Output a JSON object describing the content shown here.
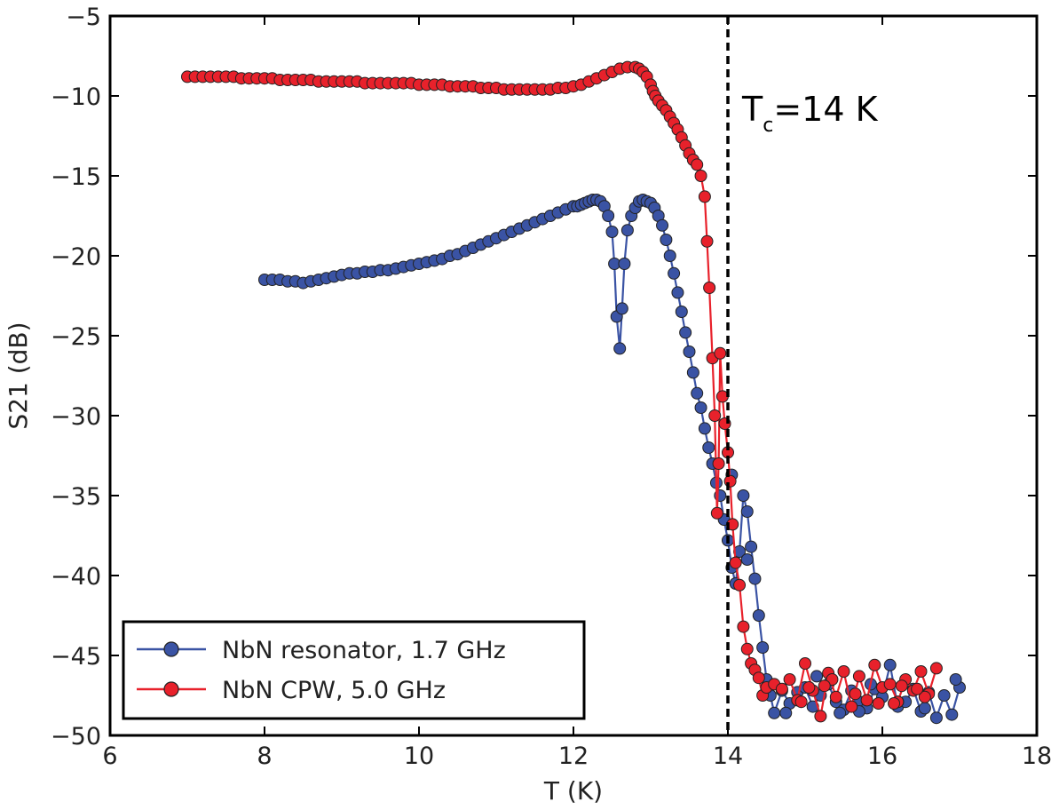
{
  "chart_data": {
    "type": "line",
    "title": "",
    "xlabel": "T (K)",
    "ylabel": "S21 (dB)",
    "xlim": [
      6,
      18
    ],
    "ylim": [
      -50,
      -5
    ],
    "xticks": [
      6,
      8,
      10,
      12,
      14,
      16,
      18
    ],
    "yticks": [
      -50,
      -45,
      -40,
      -35,
      -30,
      -25,
      -20,
      -15,
      -10,
      -5
    ],
    "xtick_labels": [
      "6",
      "8",
      "10",
      "12",
      "14",
      "16",
      "18"
    ],
    "ytick_labels": [
      "−50",
      "−45",
      "−40",
      "−35",
      "−30",
      "−25",
      "−20",
      "−15",
      "−10",
      "−5"
    ],
    "grid": false,
    "legend_position": "lower-left",
    "vline": {
      "x": 14,
      "style": "dashed",
      "color": "#000000"
    },
    "annotation": {
      "main": "T",
      "sub": "c",
      "rest": "=14 K"
    },
    "series": [
      {
        "name": "NbN resonator, 1.7 GHz",
        "color": "#3a53a4",
        "x": [
          8.0,
          8.1,
          8.2,
          8.3,
          8.4,
          8.5,
          8.6,
          8.7,
          8.8,
          8.9,
          9.0,
          9.1,
          9.2,
          9.3,
          9.4,
          9.5,
          9.6,
          9.7,
          9.8,
          9.9,
          10.0,
          10.1,
          10.2,
          10.3,
          10.4,
          10.5,
          10.6,
          10.7,
          10.8,
          10.9,
          11.0,
          11.1,
          11.2,
          11.3,
          11.4,
          11.5,
          11.6,
          11.7,
          11.8,
          11.9,
          12.0,
          12.05,
          12.1,
          12.15,
          12.2,
          12.25,
          12.3,
          12.35,
          12.4,
          12.45,
          12.5,
          12.53,
          12.56,
          12.6,
          12.63,
          12.66,
          12.7,
          12.75,
          12.8,
          12.85,
          12.9,
          12.95,
          13.0,
          13.05,
          13.1,
          13.15,
          13.2,
          13.25,
          13.3,
          13.35,
          13.4,
          13.45,
          13.5,
          13.55,
          13.6,
          13.65,
          13.7,
          13.75,
          13.8,
          13.85,
          13.9,
          13.95,
          14.0,
          14.05,
          14.1,
          14.15,
          14.2,
          14.25,
          14.3,
          14.35,
          14.4,
          14.45,
          14.5,
          14.55,
          14.6,
          14.7,
          14.8,
          14.9,
          15.0,
          15.1,
          15.2,
          15.3,
          15.4,
          15.5,
          15.6,
          15.7,
          15.8,
          15.9,
          16.0,
          16.1,
          16.2,
          16.3,
          16.4,
          16.5,
          16.6,
          16.7,
          16.8,
          16.9,
          17.0
        ],
        "y": [
          -21.5,
          -21.5,
          -21.5,
          -21.6,
          -21.6,
          -21.7,
          -21.6,
          -21.5,
          -21.4,
          -21.3,
          -21.2,
          -21.1,
          -21.1,
          -21.0,
          -21.0,
          -20.9,
          -20.9,
          -20.8,
          -20.7,
          -20.6,
          -20.5,
          -20.4,
          -20.3,
          -20.2,
          -20.0,
          -19.9,
          -19.7,
          -19.5,
          -19.3,
          -19.1,
          -18.9,
          -18.7,
          -18.5,
          -18.3,
          -18.1,
          -17.9,
          -17.7,
          -17.5,
          -17.3,
          -17.1,
          -16.9,
          -16.9,
          -16.8,
          -16.7,
          -16.6,
          -16.5,
          -16.5,
          -16.6,
          -16.9,
          -17.5,
          -18.5,
          -20.5,
          -23.8,
          -25.8,
          -23.3,
          -20.5,
          -18.4,
          -17.5,
          -17.0,
          -16.6,
          -16.5,
          -16.6,
          -16.7,
          -17.0,
          -17.5,
          -18.1,
          -19.0,
          -20.0,
          -21.1,
          -22.3,
          -23.5,
          -24.8,
          -26.0,
          -27.3,
          -28.6,
          -29.5,
          -30.8,
          -32.0,
          -33.0,
          -34.2,
          -35.0,
          -36.5,
          -37.8,
          -39.5,
          -40.5,
          -38.5,
          -35.0,
          -36.0,
          -38.2,
          -40.2,
          -42.5,
          -44.5,
          -46.5,
          -47.5,
          -48.6,
          -47.2,
          -48.0,
          -47.3,
          -47.0,
          -48.2,
          -47.5,
          -46.8,
          -47.9,
          -48.4,
          -47.2,
          -47.9,
          -48.3,
          -47.1,
          -47.6,
          -45.6,
          -48.2,
          -47.9,
          -47.1,
          -48.5,
          -47.3,
          -48.9,
          -47.5,
          -48.7,
          -47.0
        ],
        "extra": [
          [
            14.05,
            -33.7
          ],
          [
            14.25,
            -39.0
          ],
          [
            15.15,
            -46.3
          ],
          [
            15.45,
            -48.6
          ],
          [
            16.55,
            -48.3
          ],
          [
            16.95,
            -46.5
          ],
          [
            15.85,
            -46.8
          ],
          [
            16.2,
            -47.9
          ],
          [
            14.75,
            -48.6
          ],
          [
            15.7,
            -48.5
          ]
        ]
      },
      {
        "name": "NbN CPW, 5.0 GHz",
        "color": "#e8212b",
        "x": [
          7.0,
          7.1,
          7.2,
          7.3,
          7.4,
          7.5,
          7.6,
          7.7,
          7.8,
          7.9,
          8.0,
          8.1,
          8.2,
          8.3,
          8.4,
          8.5,
          8.6,
          8.7,
          8.8,
          8.9,
          9.0,
          9.1,
          9.2,
          9.3,
          9.4,
          9.5,
          9.6,
          9.7,
          9.8,
          9.9,
          10.0,
          10.1,
          10.2,
          10.3,
          10.4,
          10.5,
          10.6,
          10.7,
          10.8,
          10.9,
          11.0,
          11.1,
          11.2,
          11.3,
          11.4,
          11.5,
          11.6,
          11.7,
          11.8,
          11.9,
          12.0,
          12.1,
          12.2,
          12.3,
          12.4,
          12.5,
          12.6,
          12.7,
          12.8,
          12.85,
          12.9,
          12.95,
          13.0,
          13.03,
          13.06,
          13.1,
          13.15,
          13.2,
          13.25,
          13.3,
          13.35,
          13.4,
          13.45,
          13.5,
          13.55,
          13.6,
          13.65,
          13.7,
          13.73,
          13.76,
          13.8,
          13.83,
          13.86,
          13.88,
          13.9,
          13.93,
          13.96,
          14.0,
          14.03,
          14.06,
          14.1,
          14.15,
          14.2,
          14.25,
          14.3,
          14.35,
          14.4,
          14.45,
          14.5,
          14.6,
          14.7,
          14.8,
          14.9,
          15.0,
          15.1,
          15.2,
          15.3,
          15.4,
          15.5,
          15.6,
          15.7,
          15.8,
          15.9,
          16.0,
          16.1,
          16.2,
          16.3,
          16.4,
          16.5,
          16.6,
          16.7
        ],
        "y": [
          -8.8,
          -8.8,
          -8.8,
          -8.8,
          -8.8,
          -8.8,
          -8.8,
          -8.9,
          -8.9,
          -8.9,
          -8.9,
          -8.9,
          -9.0,
          -9.0,
          -9.0,
          -9.0,
          -9.0,
          -9.1,
          -9.1,
          -9.1,
          -9.1,
          -9.1,
          -9.1,
          -9.2,
          -9.2,
          -9.2,
          -9.2,
          -9.2,
          -9.2,
          -9.2,
          -9.3,
          -9.3,
          -9.3,
          -9.3,
          -9.4,
          -9.4,
          -9.4,
          -9.4,
          -9.5,
          -9.5,
          -9.5,
          -9.6,
          -9.6,
          -9.6,
          -9.6,
          -9.6,
          -9.6,
          -9.6,
          -9.5,
          -9.5,
          -9.4,
          -9.3,
          -9.1,
          -8.9,
          -8.7,
          -8.5,
          -8.3,
          -8.2,
          -8.2,
          -8.3,
          -8.5,
          -8.8,
          -9.3,
          -9.7,
          -10.0,
          -10.3,
          -10.6,
          -10.9,
          -11.3,
          -11.7,
          -12.1,
          -12.6,
          -13.1,
          -13.6,
          -14.0,
          -14.3,
          -15.0,
          -16.3,
          -19.1,
          -22.0,
          -26.4,
          -30.0,
          -36.1,
          -33.0,
          -26.1,
          -28.8,
          -30.5,
          -32.3,
          -34.1,
          -36.8,
          -39.2,
          -40.6,
          -43.2,
          -44.6,
          -45.5,
          -45.9,
          -46.4,
          -47.5,
          -47.0,
          -46.8,
          -47.1,
          -46.5,
          -47.8,
          -45.5,
          -47.2,
          -48.8,
          -46.1,
          -47.6,
          -46.0,
          -48.2,
          -46.3,
          -47.8,
          -45.6,
          -47.0,
          -46.8,
          -47.9,
          -46.5,
          -47.2,
          -46.0,
          -47.4,
          -45.8
        ],
        "extra": [
          [
            15.05,
            -47.0
          ],
          [
            15.35,
            -46.5
          ],
          [
            15.65,
            -47.4
          ],
          [
            15.95,
            -48.0
          ],
          [
            16.25,
            -46.9
          ],
          [
            16.55,
            -47.6
          ],
          [
            14.95,
            -47.9
          ],
          [
            15.25,
            -46.9
          ],
          [
            16.15,
            -48.0
          ],
          [
            16.45,
            -47.1
          ]
        ]
      }
    ]
  }
}
